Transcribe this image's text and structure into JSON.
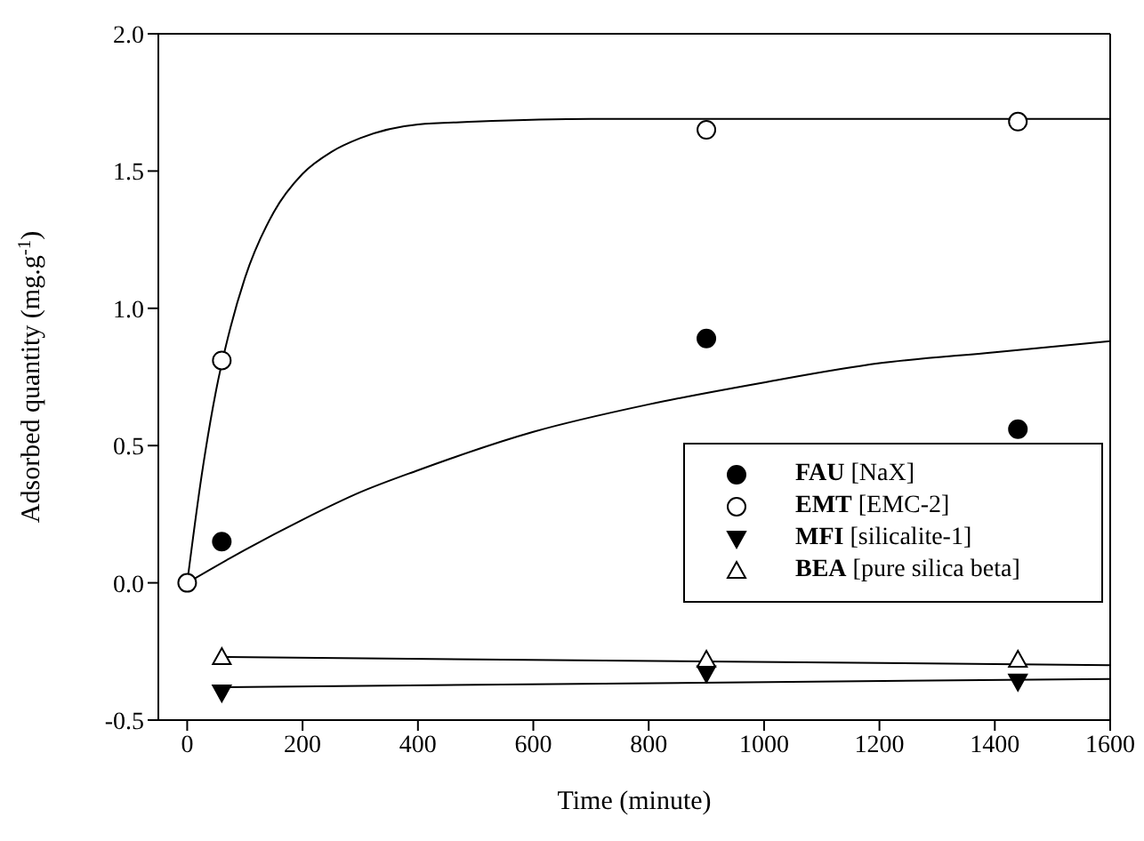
{
  "chart_data": {
    "type": "scatter",
    "xlabel": "Time (minute)",
    "ylabel": "Adsorbed quantity (mg.g$^{-1}$)",
    "xlim": [
      -50,
      1600
    ],
    "xticks": [
      0,
      200,
      400,
      600,
      800,
      1000,
      1200,
      1400,
      1600
    ],
    "ylim": [
      -0.5,
      2.0
    ],
    "yticks": [
      -0.5,
      {
        "value": 0,
        "label": "0.0"
      },
      0.5,
      {
        "value": 1,
        "label": "1.0"
      },
      1.5,
      {
        "value": 2,
        "label": "2.0"
      }
    ],
    "grid": false,
    "legend": "bottom right",
    "series": [
      {
        "name": "FAU [NaX]",
        "marker": "circle",
        "color": "#000000",
        "x": [
          60,
          900,
          1440
        ],
        "values": [
          0.15,
          0.89,
          0.56
        ]
      },
      {
        "name": "EMT [EMC-2]",
        "marker": "circle-open",
        "color": "#000000",
        "x": [
          0,
          60,
          900,
          1440
        ],
        "values": [
          0.0,
          0.81,
          1.65,
          1.68
        ]
      },
      {
        "name": "MFI [silicalite-1]",
        "marker": "triangle-down",
        "color": "#000000",
        "x": [
          60,
          900,
          1440
        ],
        "values": [
          -0.4,
          -0.33,
          -0.36
        ]
      },
      {
        "name": "BEA [pure silica beta]",
        "marker": "triangle-open",
        "color": "#000000",
        "x": [
          60,
          900,
          1440
        ],
        "values": [
          -0.27,
          -0.28,
          -0.28
        ]
      },
      {
        "type": "line",
        "marker": "none",
        "color": "#000000",
        "x": [
          0,
          25,
          50,
          75,
          100,
          150,
          200,
          250,
          300,
          400,
          500,
          700,
          1000,
          1600
        ],
        "values": [
          0.0,
          0.39,
          0.7,
          0.93,
          1.11,
          1.35,
          1.49,
          1.57,
          1.62,
          1.67,
          1.68,
          1.69,
          1.69,
          1.69
        ]
      },
      {
        "type": "line",
        "marker": "none",
        "color": "#000000",
        "x": [
          0,
          100,
          200,
          300,
          400,
          600,
          800,
          1000,
          1200,
          1400,
          1600
        ],
        "values": [
          0.0,
          0.12,
          0.23,
          0.33,
          0.41,
          0.55,
          0.65,
          0.73,
          0.8,
          0.84,
          0.88
        ]
      },
      {
        "type": "line",
        "marker": "none",
        "color": "#000000",
        "x": [
          60,
          1600
        ],
        "values": [
          -0.38,
          -0.35
        ]
      },
      {
        "type": "line",
        "marker": "none",
        "color": "#000000",
        "x": [
          60,
          1600
        ],
        "values": [
          -0.27,
          -0.3
        ]
      }
    ]
  }
}
